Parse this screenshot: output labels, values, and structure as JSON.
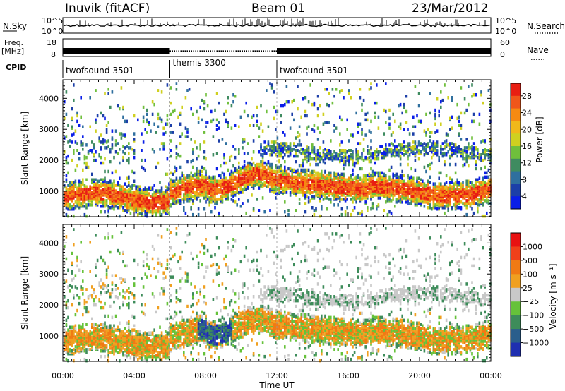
{
  "header": {
    "station": "Inuvik (fitACF)",
    "beam": "Beam 01",
    "date": "23/Mar/2012"
  },
  "aux_panels": {
    "nsky": {
      "label": "N.Sky",
      "y_top_label": "10^5",
      "y_bottom_label": "10^0",
      "right_top_label": "10^5",
      "right_bottom_label": "10^0",
      "right_label": "N.Search"
    },
    "freq": {
      "label_line1": "Freq.",
      "label_line2": "[MHz]",
      "y_top_label": "18",
      "y_bottom_label": "8",
      "right_top_label": "60",
      "right_bottom_label": "0",
      "right_label": "Nave"
    },
    "cpid": {
      "label": "CPID",
      "segments": [
        {
          "name": "twofsound 3501",
          "start_hour": 0,
          "end_hour": 6.0
        },
        {
          "name": "themis 3300",
          "start_hour": 6.0,
          "end_hour": 12.0
        },
        {
          "name": "twofsound 3501",
          "start_hour": 12.0,
          "end_hour": 24.0
        }
      ]
    }
  },
  "chart_data": [
    {
      "type": "heatmap",
      "quantity": "power",
      "ylabel": "Slant Range [km]",
      "ylim": [
        180,
        4600
      ],
      "yticks": [
        "1000",
        "2000",
        "3000",
        "4000"
      ],
      "xlim_hours": [
        0,
        24
      ],
      "colorbar": {
        "label": "Power [dB]",
        "ticks": [
          "4",
          "8",
          "12",
          "16",
          "20",
          "24",
          "28"
        ],
        "colors": [
          "#0a1ee8",
          "#1c3fa8",
          "#2f6f9e",
          "#3f8b60",
          "#6fbf3c",
          "#cfd020",
          "#f0b81a",
          "#f58a12",
          "#f0561a",
          "#e81e12"
        ]
      }
    },
    {
      "type": "heatmap",
      "quantity": "velocity",
      "ylabel": "Slant Range [km]",
      "ylim": [
        180,
        4600
      ],
      "yticks": [
        "1000",
        "2000",
        "3000",
        "4000"
      ],
      "xlim_hours": [
        0,
        24
      ],
      "xticks": [
        "00:00",
        "04:00",
        "08:00",
        "12:00",
        "16:00",
        "20:00",
        "00:00"
      ],
      "xlabel": "Time UT",
      "colorbar": {
        "label": "Velocity [m s⁻¹]",
        "ticks": [
          "1000",
          "500",
          "100",
          "25",
          "−25",
          "−100",
          "−500",
          "−1000"
        ],
        "colors": [
          "#1f2fb0",
          "#2a5e8c",
          "#3d8c5a",
          "#66c23a",
          "#c8c8c8",
          "#f0a020",
          "#f07a14",
          "#f0401a",
          "#e81212"
        ]
      }
    }
  ]
}
